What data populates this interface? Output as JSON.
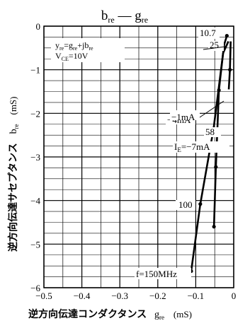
{
  "chart_data": {
    "type": "line",
    "title_main": "b",
    "title_main_sub": "re",
    "title_dash": " — ",
    "title_second": "g",
    "title_second_sub": "re",
    "xlabel": "逆方向伝達コンダクタンス",
    "xlabel_sym": "g",
    "xlabel_sym_sub": "re",
    "xlabel_unit": "(mS)",
    "ylabel": "逆方向伝達サセプタンス",
    "ylabel_sym": "b",
    "ylabel_sym_sub": "re",
    "ylabel_unit": "(mS)",
    "xlim": [
      -0.5,
      0
    ],
    "ylim": [
      -6,
      0
    ],
    "x_ticks": [
      -0.5,
      -0.4,
      -0.3,
      -0.2,
      -0.1,
      0
    ],
    "x_tick_labels": [
      "−0.5",
      "−0.4",
      "−0.3",
      "−0.2",
      "−0.1",
      "0"
    ],
    "y_ticks": [
      0,
      -1,
      -2,
      -3,
      -4,
      -5,
      -6
    ],
    "y_tick_labels": [
      "0",
      "−1",
      "−2",
      "−3",
      "−4",
      "−5",
      "−6"
    ],
    "grid": true,
    "minor_x_step": 0.05,
    "minor_y_step": 0.25,
    "formula_line1": {
      "a": "y",
      "a_sub": "re",
      "b": "=g",
      "b_sub": "re",
      "c": "+jb",
      "c_sub": "re"
    },
    "formula_line2": {
      "a": "V",
      "a_sub": "CE",
      "b": "=10V"
    },
    "series": [
      {
        "name": "I_E=−7mA",
        "x": [
          -0.112,
          -0.088,
          -0.053,
          -0.025,
          -0.018
        ],
        "y": [
          -5.62,
          -4.08,
          -2.35,
          -0.42,
          -0.22
        ],
        "markers": [
          true,
          true,
          true,
          false,
          true
        ]
      },
      {
        "name": "I_E=−4mA",
        "x": [
          -0.052,
          -0.047,
          -0.039,
          -0.028,
          -0.014
        ],
        "y": [
          -4.6,
          -3.23,
          -1.47,
          -0.62,
          -0.35
        ],
        "markers": [
          true,
          true,
          true,
          false,
          false
        ]
      },
      {
        "name": "I_E=−1mA",
        "x": [
          -0.013,
          -0.01,
          -0.008
        ],
        "y": [
          -1.45,
          -1.0,
          -0.35
        ],
        "markers": [
          false,
          true,
          false
        ]
      }
    ],
    "annotations": {
      "f_start": "f=150MHz",
      "f_100": "100",
      "f_58": "58",
      "f_25": "25",
      "f_10_7": "10.7",
      "ie_label": "I",
      "ie_sub": "E",
      "ie_value": "=−7mA",
      "ie4": "−4mA",
      "ie1": "−1mA"
    }
  }
}
